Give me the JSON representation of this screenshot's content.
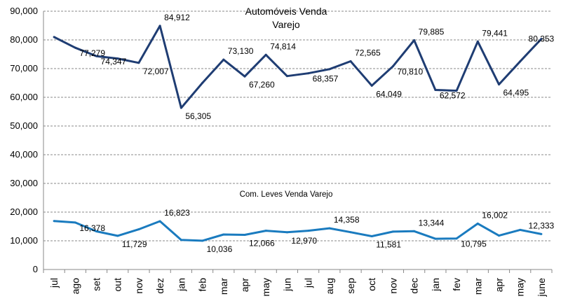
{
  "chart_data": {
    "type": "line",
    "title_line1": "Automóveis Venda",
    "title_line2": "Varejo",
    "series_label": "Com. Leves Venda Varejo",
    "categories": [
      "jul",
      "ago",
      "set",
      "out",
      "nov",
      "dez",
      "jan",
      "feb",
      "mar",
      "apr",
      "may",
      "jun",
      "jul",
      "aug",
      "sep",
      "oct",
      "nov",
      "dec",
      "jan",
      "fev",
      "mar",
      "apr",
      "may",
      "june"
    ],
    "ylim": [
      0,
      90000
    ],
    "y_ticks": [
      "0",
      "10,000",
      "20,000",
      "30,000",
      "40,000",
      "50,000",
      "60,000",
      "70,000",
      "80,000",
      "90,000"
    ],
    "grid": true,
    "series": [
      {
        "color": "#1f3d73",
        "values": [
          81000,
          77279,
          74347,
          73500,
          72007,
          84912,
          56305,
          65000,
          73130,
          67260,
          74814,
          67400,
          68357,
          69800,
          72565,
          64049,
          70810,
          79885,
          62572,
          62300,
          79441,
          64495,
          72500,
          80353
        ],
        "labels": [
          "",
          "77,279",
          "74,347",
          "",
          "72,007",
          "84,912",
          "56,305",
          "",
          "73,130",
          "67,260",
          "74,814",
          "",
          "68,357",
          "",
          "72,565",
          "64,049",
          "70,810",
          "79,885",
          "62,572",
          "",
          "79,441",
          "64,495",
          "",
          "80,353"
        ]
      },
      {
        "color": "#1a7bbf",
        "values": [
          16900,
          16378,
          13300,
          11729,
          14000,
          16823,
          10300,
          10036,
          12200,
          12066,
          13500,
          12970,
          13500,
          14358,
          13000,
          11581,
          13200,
          13344,
          10700,
          10795,
          16002,
          11800,
          13800,
          12333
        ],
        "labels": [
          "",
          "16,378",
          "",
          "11,729",
          "",
          "16,823",
          "",
          "10,036",
          "",
          "12,066",
          "",
          "12,970",
          "",
          "14,358",
          "",
          "11,581",
          "",
          "13,344",
          "",
          "10,795",
          "16,002",
          "",
          "",
          "12,333"
        ]
      }
    ]
  }
}
